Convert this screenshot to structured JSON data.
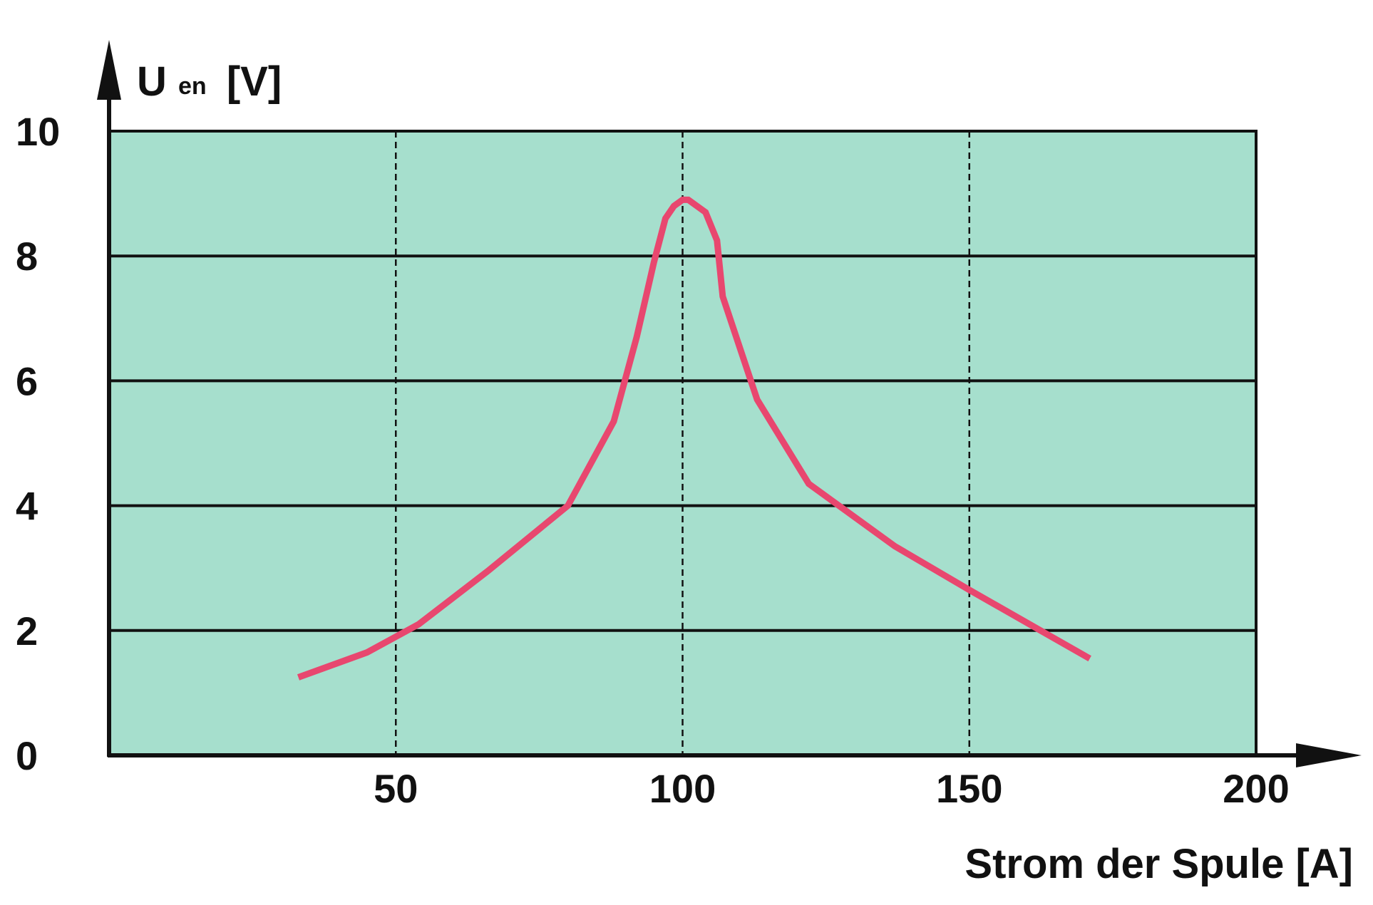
{
  "chart_data": {
    "type": "line",
    "ylabel_main": "U",
    "ylabel_sub": "en",
    "ylabel_unit": "[V]",
    "xlabel": "Strom der Spule [A]",
    "xlim": [
      0,
      200
    ],
    "ylim": [
      0,
      10
    ],
    "x_ticks": [
      50,
      100,
      150,
      200
    ],
    "y_ticks": [
      0,
      2,
      4,
      6,
      8,
      10
    ],
    "x_tick_labels": [
      "50",
      "100",
      "150",
      "200"
    ],
    "y_tick_labels": [
      "0",
      "2",
      "4",
      "6",
      "8",
      "10"
    ],
    "grid": {
      "horizontal": "solid",
      "vertical": "dashed"
    },
    "colors": {
      "plot_background": "#a6dfcd",
      "line": "#e8476f",
      "axes": "#111111"
    },
    "series": [
      {
        "x": [
          33,
          45,
          54,
          66,
          80,
          88,
          92,
          95,
          97,
          98.5,
          100,
          101,
          102.5,
          104,
          106,
          107,
          113,
          122,
          137,
          150,
          171
        ],
        "y": [
          1.25,
          1.65,
          2.1,
          2.95,
          4.0,
          5.35,
          6.7,
          7.9,
          8.6,
          8.8,
          8.9,
          8.9,
          8.8,
          8.7,
          8.25,
          7.35,
          5.7,
          4.35,
          3.35,
          2.65,
          1.55
        ]
      }
    ]
  }
}
